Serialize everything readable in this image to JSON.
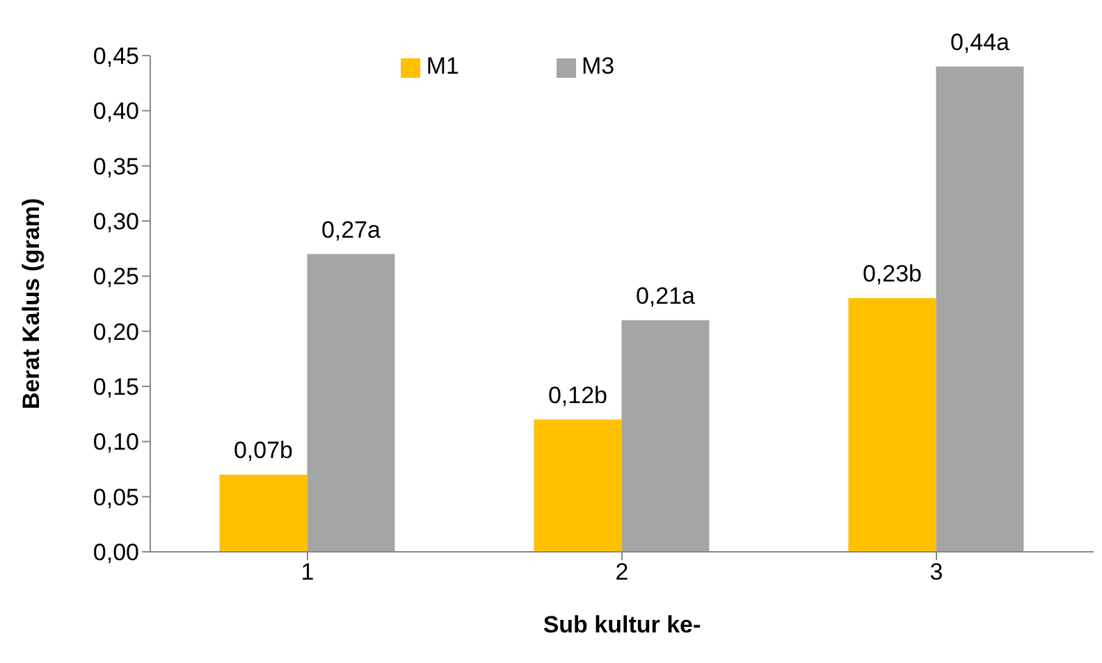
{
  "chart_data": {
    "type": "bar",
    "xlabel": "Sub kultur ke-",
    "ylabel": "Berat Kalus (gram)",
    "categories": [
      "1",
      "2",
      "3"
    ],
    "series": [
      {
        "name": "M1",
        "color": "#ffc000",
        "values": [
          0.07,
          0.12,
          0.23
        ],
        "value_labels": [
          "0,07b",
          "0,12b",
          "0,23b"
        ]
      },
      {
        "name": "M3",
        "color": "#a5a5a5",
        "values": [
          0.27,
          0.21,
          0.44
        ],
        "value_labels": [
          "0,27a",
          "0,21a",
          "0,44a"
        ]
      }
    ],
    "ylim": [
      0,
      0.45
    ],
    "yticks": [
      {
        "value": 0,
        "label": "0,00"
      },
      {
        "value": 0.05,
        "label": "0,05"
      },
      {
        "value": 0.1,
        "label": "0,10"
      },
      {
        "value": 0.15,
        "label": "0,15"
      },
      {
        "value": 0.2,
        "label": "0,20"
      },
      {
        "value": 0.25,
        "label": "0,25"
      },
      {
        "value": 0.3,
        "label": "0,30"
      },
      {
        "value": 0.35,
        "label": "0,35"
      },
      {
        "value": 0.4,
        "label": "0,40"
      },
      {
        "value": 0.45,
        "label": "0,45"
      }
    ],
    "grid": false,
    "legend": "top"
  }
}
